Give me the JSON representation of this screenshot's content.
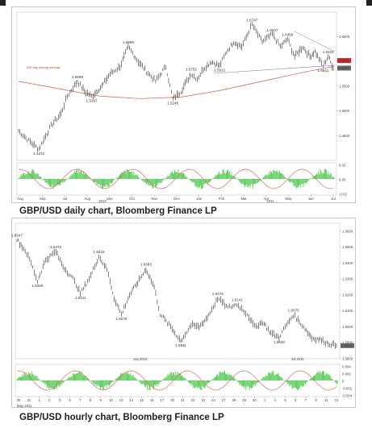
{
  "figures": [
    {
      "caption": "GBP/USD daily chart, Bloomberg Finance LP",
      "annotations": [
        "1.4231",
        "1.5599",
        "1.5297",
        "1.6299",
        "1.5245",
        "1.5752",
        "1.5912",
        "1.6747",
        "1.6547",
        "1.6456",
        "1.5911",
        "1.6102"
      ],
      "legend_note": "200-day moving average",
      "price_tags": [
        "1.6020",
        "1.5867"
      ],
      "osc_tags": [
        "0.02",
        "0.00",
        "-0.02"
      ],
      "x_ticks": [
        "Aug",
        "Sep",
        "Jul",
        "Aug",
        "Sep",
        "Oct",
        "Nov",
        "Dec",
        "Jan",
        "Feb",
        "Mar",
        "Apr",
        "May",
        "Jun",
        "Jul"
      ],
      "y_ticks": [
        "1.6500",
        "1.6000",
        "1.5500",
        "1.5000",
        "1.4500"
      ],
      "year_labels": [
        "2010",
        "2011"
      ]
    },
    {
      "caption": "GBP/USD hourly chart, Bloomberg Finance LP",
      "annotations": [
        "1.6547",
        "1.6472",
        "1.6442",
        "1.6286",
        "1.6211",
        "1.6363",
        "1.6078",
        "1.6179",
        "1.6141",
        "1.5911",
        "1.6075",
        "1.5932"
      ],
      "price_tags": [
        "1.5882"
      ],
      "osc_tags": [
        "0.004",
        "0.002",
        "0",
        "-0.002",
        "-0.004"
      ],
      "x_ticks": [
        "30",
        "31",
        "1",
        "2",
        "3",
        "6",
        "7",
        "8",
        "9",
        "10",
        "13",
        "14",
        "15",
        "16",
        "17",
        "20",
        "21",
        "22",
        "23",
        "24",
        "27",
        "28",
        "29",
        "30",
        "1",
        "4",
        "5",
        "6",
        "7",
        "8",
        "11",
        "12"
      ],
      "y_ticks": [
        "1.6600",
        "1.6500",
        "1.6400",
        "1.6300",
        "1.6200",
        "1.6100",
        "1.6000",
        "1.5900",
        "1.5800"
      ],
      "period_labels": [
        "May 2011",
        "Jun 2011",
        "Jul 2011"
      ]
    }
  ],
  "chart_data": [
    {
      "type": "line",
      "title": "GBP/USD daily chart, Bloomberg Finance LP",
      "xlabel": "",
      "ylabel": "",
      "ylim": [
        1.4,
        1.7
      ],
      "x_ticks": [
        "Aug",
        "Sep",
        "Jul",
        "Aug",
        "Sep",
        "Oct",
        "Nov",
        "Dec",
        "Jan",
        "Feb",
        "Mar",
        "Apr",
        "May",
        "Jun",
        "Jul"
      ],
      "series": [
        {
          "name": "",
          "x": [
            0,
            10,
            20,
            32,
            42,
            48,
            58,
            65,
            72,
            82,
            90,
            100,
            108,
            118,
            126,
            135,
            145,
            152,
            160,
            170,
            176,
            182,
            190,
            198,
            205,
            212,
            220,
            230,
            240,
            250,
            258,
            265,
            272,
            280,
            287,
            292,
            300,
            305,
            310
          ],
          "values": [
            1.46,
            1.44,
            1.4231,
            1.47,
            1.495,
            1.53,
            1.5599,
            1.54,
            1.5297,
            1.55,
            1.575,
            1.59,
            1.6299,
            1.6,
            1.58,
            1.56,
            1.59,
            1.5245,
            1.54,
            1.5752,
            1.565,
            1.585,
            1.6,
            1.5912,
            1.62,
            1.64,
            1.63,
            1.6747,
            1.64,
            1.6547,
            1.63,
            1.6456,
            1.61,
            1.63,
            1.61,
            1.62,
            1.5911,
            1.6102,
            1.5867
          ]
        },
        {
          "name": "200-day moving average",
          "x": [
            0,
            40,
            80,
            120,
            160,
            200,
            240,
            280,
            310
          ],
          "values": [
            1.56,
            1.545,
            1.53,
            1.525,
            1.528,
            1.542,
            1.56,
            1.578,
            1.59
          ]
        }
      ],
      "annotations": [
        "1.4231",
        "1.5599",
        "1.5297",
        "1.6299",
        "1.5245",
        "1.5752",
        "1.5912",
        "1.6747",
        "1.6547",
        "1.6456",
        "1.5911",
        "1.6102"
      ]
    },
    {
      "type": "line",
      "title": "GBP/USD hourly chart, Bloomberg Finance LP",
      "xlabel": "",
      "ylabel": "",
      "ylim": [
        1.58,
        1.665
      ],
      "x_ticks": [
        "30",
        "31",
        "1",
        "2",
        "3",
        "6",
        "7",
        "8",
        "9",
        "10",
        "13",
        "14",
        "15",
        "16",
        "17",
        "20",
        "21",
        "22",
        "23",
        "24",
        "27",
        "28",
        "29",
        "30",
        "1",
        "4",
        "5",
        "6",
        "7",
        "8",
        "11",
        "12"
      ],
      "series": [
        {
          "name": "",
          "x": [
            0,
            8,
            14,
            20,
            28,
            38,
            45,
            55,
            62,
            72,
            80,
            88,
            95,
            102,
            110,
            118,
            126,
            134,
            140,
            150,
            160,
            170,
            178,
            186,
            196,
            206,
            215,
            225,
            232,
            240,
            248,
            256,
            262,
            270,
            280,
            288,
            296,
            304,
            312
          ],
          "values": [
            1.6547,
            1.648,
            1.64,
            1.6286,
            1.642,
            1.6472,
            1.638,
            1.63,
            1.6211,
            1.632,
            1.6442,
            1.636,
            1.618,
            1.6078,
            1.62,
            1.628,
            1.6363,
            1.625,
            1.608,
            1.6,
            1.5911,
            1.601,
            1.6,
            1.606,
            1.6179,
            1.612,
            1.6141,
            1.608,
            1.6,
            1.603,
            1.596,
            1.5932,
            1.6,
            1.6075,
            1.6,
            1.593,
            1.592,
            1.5895,
            1.5882
          ]
        }
      ],
      "annotations": [
        "1.6547",
        "1.6472",
        "1.6442",
        "1.6286",
        "1.6211",
        "1.6363",
        "1.6078",
        "1.6179",
        "1.6141",
        "1.5911",
        "1.6075",
        "1.5932"
      ]
    }
  ],
  "colors": {
    "price": "#1a1a1a",
    "moving_average": "#e05050",
    "trendline": "#7a7ad0",
    "osc_green": "#3cc83c",
    "osc_red": "#e06a6a",
    "tag_red": "#d62020",
    "tag_grey": "#666666"
  }
}
